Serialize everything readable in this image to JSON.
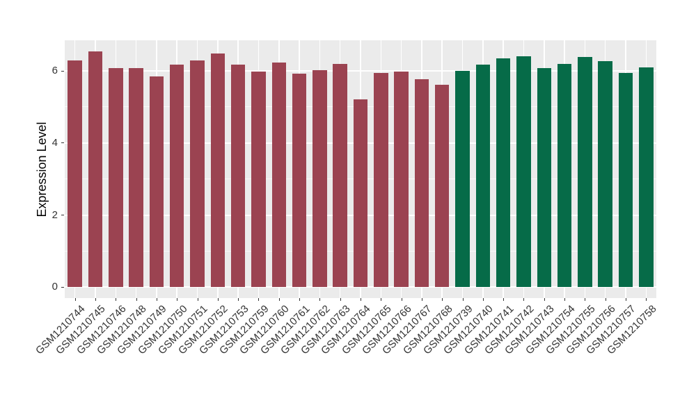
{
  "chart_data": {
    "type": "bar",
    "title": "",
    "xlabel": "",
    "ylabel": "Expression Level",
    "categories": [
      "GSM1210744",
      "GSM1210745",
      "GSM1210746",
      "GSM1210748",
      "GSM1210749",
      "GSM1210750",
      "GSM1210751",
      "GSM1210752",
      "GSM1210753",
      "GSM1210759",
      "GSM1210760",
      "GSM1210761",
      "GSM1210762",
      "GSM1210763",
      "GSM1210764",
      "GSM1210765",
      "GSM1210766",
      "GSM1210767",
      "GSM1210768",
      "GSM1210739",
      "GSM1210740",
      "GSM1210741",
      "GSM1210742",
      "GSM1210743",
      "GSM1210754",
      "GSM1210755",
      "GSM1210756",
      "GSM1210757",
      "GSM1210758"
    ],
    "values": [
      6.3,
      6.54,
      6.07,
      6.08,
      5.84,
      6.18,
      6.3,
      6.49,
      6.17,
      5.99,
      6.23,
      5.93,
      6.02,
      6.19,
      5.22,
      5.95,
      5.98,
      5.77,
      5.62,
      6.01,
      6.17,
      6.34,
      6.4,
      6.07,
      6.2,
      6.38,
      6.28,
      5.95,
      6.09
    ],
    "groups": [
      0,
      0,
      0,
      0,
      0,
      0,
      0,
      0,
      0,
      0,
      0,
      0,
      0,
      0,
      0,
      0,
      0,
      0,
      0,
      1,
      1,
      1,
      1,
      1,
      1,
      1,
      1,
      1,
      1
    ],
    "group_colors": [
      "#9B4351",
      "#066B48"
    ],
    "yticks": [
      0,
      2,
      4,
      6
    ],
    "minor_yticks": [
      1,
      3,
      5
    ],
    "ylim": [
      -0.3,
      6.85
    ],
    "grid": "horizontal major+minor white, vertical white line at each category center",
    "legend": "none",
    "styles": {
      "figure_background": "#FFFFFF",
      "panel_background": "#EBEBEB",
      "grid_color": "#FFFFFF",
      "tick_label_color": "#333333",
      "axis_title_color": "#000000"
    }
  }
}
